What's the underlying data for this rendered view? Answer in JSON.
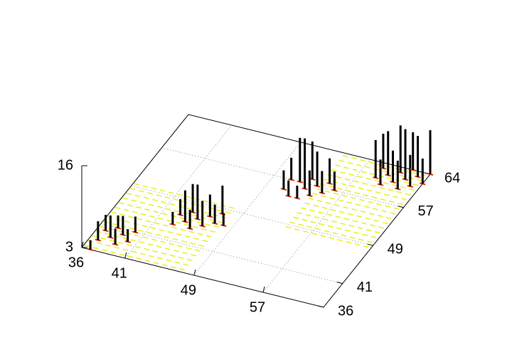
{
  "chart_data": {
    "type": "impulses3d",
    "xlim": [
      36,
      64
    ],
    "ylim": [
      36,
      64
    ],
    "zlim": [
      3,
      16
    ],
    "xticks": [
      36,
      41,
      49,
      57
    ],
    "yticks": [
      36,
      41,
      49,
      57,
      64
    ],
    "zticks": [
      3,
      16
    ],
    "grid": true,
    "color": "#000000",
    "floor_color": "#e8ee20",
    "base_color": "#dd3300",
    "floor_blocks": [
      {
        "x": [
          36,
          48
        ],
        "y": [
          36,
          50
        ]
      },
      {
        "x": [
          54,
          64
        ],
        "y": [
          48,
          64
        ]
      }
    ],
    "x": [
      37,
      37,
      38,
      38,
      39,
      39,
      40,
      40,
      37,
      43,
      44,
      44,
      45,
      45,
      46,
      46,
      47,
      47,
      43,
      48,
      51,
      52,
      52,
      53,
      53,
      54,
      54,
      55,
      55,
      56,
      53,
      51,
      59,
      60,
      60,
      61,
      61,
      62,
      62,
      63,
      63,
      64,
      64,
      59,
      62
    ],
    "y": [
      38,
      40,
      39,
      41,
      38,
      40,
      39,
      41,
      36,
      44,
      45,
      47,
      44,
      46,
      45,
      47,
      46,
      48,
      46,
      46,
      55,
      54,
      57,
      56,
      58,
      55,
      57,
      56,
      58,
      57,
      54,
      57,
      61,
      60,
      62,
      61,
      63,
      60,
      62,
      61,
      63,
      62,
      64,
      63,
      64
    ],
    "z": [
      6,
      5.5,
      6.5,
      5,
      5.5,
      6,
      5,
      5.5,
      4.5,
      5,
      8,
      7.5,
      6,
      8.5,
      7,
      6.5,
      6,
      7.5,
      5.5,
      5,
      6,
      5.5,
      10,
      11,
      9,
      7,
      8.5,
      6.5,
      7,
      6,
      5,
      6.5,
      9,
      7,
      10,
      8,
      10.5,
      7.5,
      11,
      8,
      9.5,
      7,
      10,
      8.5,
      9
    ]
  }
}
